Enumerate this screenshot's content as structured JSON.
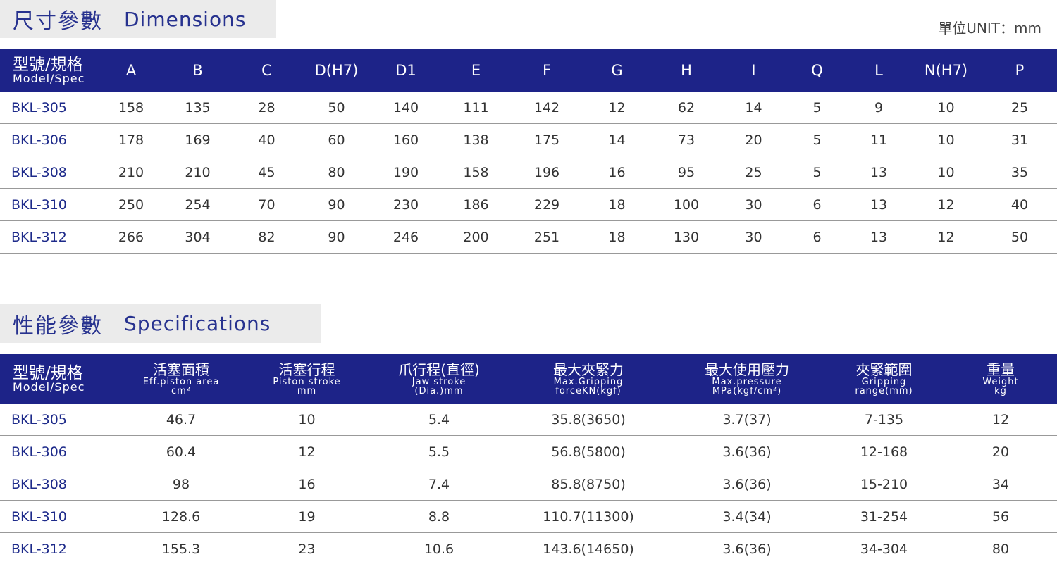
{
  "dimensions": {
    "title_zh": "尺寸參數",
    "title_en": "Dimensions",
    "unit": "單位UNIT：mm",
    "model_zh": "型號/規格",
    "model_en": "Model/Spec",
    "columns": [
      "A",
      "B",
      "C",
      "D(H7)",
      "D1",
      "E",
      "F",
      "G",
      "H",
      "I",
      "Q",
      "L",
      "N(H7)",
      "P"
    ],
    "rows": [
      [
        "BKL-305",
        "158",
        "135",
        "28",
        "50",
        "140",
        "111",
        "142",
        "12",
        "62",
        "14",
        "5",
        "9",
        "10",
        "25"
      ],
      [
        "BKL-306",
        "178",
        "169",
        "40",
        "60",
        "160",
        "138",
        "175",
        "14",
        "73",
        "20",
        "5",
        "11",
        "10",
        "31"
      ],
      [
        "BKL-308",
        "210",
        "210",
        "45",
        "80",
        "190",
        "158",
        "196",
        "16",
        "95",
        "25",
        "5",
        "13",
        "10",
        "35"
      ],
      [
        "BKL-310",
        "250",
        "254",
        "70",
        "90",
        "230",
        "186",
        "229",
        "18",
        "100",
        "30",
        "6",
        "13",
        "12",
        "40"
      ],
      [
        "BKL-312",
        "266",
        "304",
        "82",
        "90",
        "246",
        "200",
        "251",
        "18",
        "130",
        "30",
        "6",
        "13",
        "12",
        "50"
      ]
    ]
  },
  "specifications": {
    "title_zh": "性能參數",
    "title_en": "Specifications",
    "model_zh": "型號/規格",
    "model_en": "Model/Spec",
    "columns": [
      {
        "zh": "活塞面積",
        "en1": "Eff.piston area",
        "en2": "cm²"
      },
      {
        "zh": "活塞行程",
        "en1": "Piston stroke",
        "en2": "mm"
      },
      {
        "zh": "爪行程(直徑)",
        "en1": "Jaw stroke",
        "en2": "(Dia.)mm"
      },
      {
        "zh": "最大夾緊力",
        "en1": "Max.Gripping",
        "en2": "forceKN(kgf)"
      },
      {
        "zh": "最大使用壓力",
        "en1": "Max.pressure",
        "en2": "MPa(kgf/cm²)"
      },
      {
        "zh": "夾緊範圍",
        "en1": "Gripping",
        "en2": "range(mm)"
      },
      {
        "zh": "重量",
        "en1": "Weight",
        "en2": "kg"
      }
    ],
    "rows": [
      [
        "BKL-305",
        "46.7",
        "10",
        "5.4",
        "35.8(3650)",
        "3.7(37)",
        "7-135",
        "12"
      ],
      [
        "BKL-306",
        "60.4",
        "12",
        "5.5",
        "56.8(5800)",
        "3.6(36)",
        "12-168",
        "20"
      ],
      [
        "BKL-308",
        "98",
        "16",
        "7.4",
        "85.8(8750)",
        "3.6(36)",
        "15-210",
        "34"
      ],
      [
        "BKL-310",
        "128.6",
        "19",
        "8.8",
        "110.7(11300)",
        "3.4(34)",
        "31-254",
        "56"
      ],
      [
        "BKL-312",
        "155.3",
        "23",
        "10.6",
        "143.6(14650)",
        "3.6(36)",
        "34-304",
        "80"
      ]
    ]
  }
}
